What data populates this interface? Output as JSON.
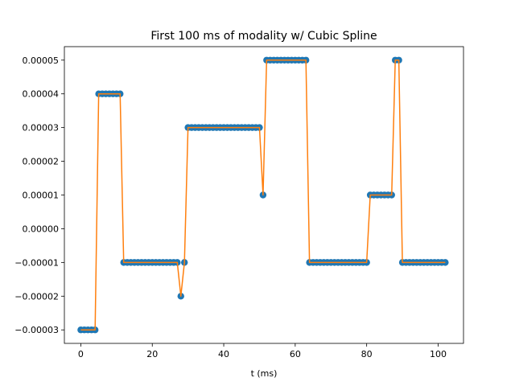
{
  "chart_data": {
    "type": "line",
    "title": "First 100 ms of modality w/ Cubic Spline",
    "xlabel": "t (ms)",
    "ylabel": "",
    "xlim": [
      -4.6,
      107.1
    ],
    "ylim": [
      -3.4e-05,
      5.4e-05
    ],
    "xticks": [
      0,
      20,
      40,
      60,
      80,
      100
    ],
    "xtick_labels": [
      "0",
      "20",
      "40",
      "60",
      "80",
      "100"
    ],
    "yticks": [
      -3e-05,
      -2e-05,
      -1e-05,
      0.0,
      1e-05,
      2e-05,
      3e-05,
      4e-05,
      5e-05
    ],
    "ytick_labels": [
      "−0.00003",
      "−0.00002",
      "−0.00001",
      "0.00000",
      "0.00001",
      "0.00002",
      "0.00003",
      "0.00004",
      "0.00005"
    ],
    "grid": false,
    "series": [
      {
        "kind": "scatter",
        "color": "#1f77b4",
        "x": [
          0,
          1,
          2,
          3,
          4,
          5,
          6,
          7,
          8,
          9,
          10,
          11,
          12,
          13,
          14,
          15,
          16,
          17,
          18,
          19,
          20,
          21,
          22,
          23,
          24,
          25,
          26,
          27,
          28,
          29,
          30,
          31,
          32,
          33,
          34,
          35,
          36,
          37,
          38,
          39,
          40,
          41,
          42,
          43,
          44,
          45,
          46,
          47,
          48,
          49,
          50,
          51,
          52,
          53,
          54,
          55,
          56,
          57,
          58,
          59,
          60,
          61,
          62,
          63,
          64,
          65,
          66,
          67,
          68,
          69,
          70,
          71,
          72,
          73,
          74,
          75,
          76,
          77,
          78,
          79,
          80,
          81,
          82,
          83,
          84,
          85,
          86,
          87,
          88,
          89,
          90,
          91,
          92,
          93,
          94,
          95,
          96,
          97,
          98,
          99,
          100,
          101,
          102
        ],
        "y": [
          -3e-05,
          -3e-05,
          -3e-05,
          -3e-05,
          -3e-05,
          4e-05,
          4e-05,
          4e-05,
          4e-05,
          4e-05,
          4e-05,
          4e-05,
          -1e-05,
          -1e-05,
          -1e-05,
          -1e-05,
          -1e-05,
          -1e-05,
          -1e-05,
          -1e-05,
          -1e-05,
          -1e-05,
          -1e-05,
          -1e-05,
          -1e-05,
          -1e-05,
          -1e-05,
          -1e-05,
          -2e-05,
          -1e-05,
          3e-05,
          3e-05,
          3e-05,
          3e-05,
          3e-05,
          3e-05,
          3e-05,
          3e-05,
          3e-05,
          3e-05,
          3e-05,
          3e-05,
          3e-05,
          3e-05,
          3e-05,
          3e-05,
          3e-05,
          3e-05,
          3e-05,
          3e-05,
          3e-05,
          1e-05,
          5e-05,
          5e-05,
          5e-05,
          5e-05,
          5e-05,
          5e-05,
          5e-05,
          5e-05,
          5e-05,
          5e-05,
          5e-05,
          5e-05,
          -1e-05,
          -1e-05,
          -1e-05,
          -1e-05,
          -1e-05,
          -1e-05,
          -1e-05,
          -1e-05,
          -1e-05,
          -1e-05,
          -1e-05,
          -1e-05,
          -1e-05,
          -1e-05,
          -1e-05,
          -1e-05,
          -1e-05,
          1e-05,
          1e-05,
          1e-05,
          1e-05,
          1e-05,
          1e-05,
          1e-05,
          5e-05,
          5e-05,
          -1e-05,
          -1e-05,
          -1e-05,
          -1e-05,
          -1e-05,
          -1e-05,
          -1e-05,
          -1e-05,
          -1e-05,
          -1e-05,
          -1e-05,
          -1e-05,
          -1e-05
        ]
      },
      {
        "kind": "line",
        "color": "#ff7f0e",
        "x": [
          0,
          1,
          2,
          3,
          4,
          5,
          6,
          7,
          8,
          9,
          10,
          11,
          12,
          13,
          14,
          15,
          16,
          17,
          18,
          19,
          20,
          21,
          22,
          23,
          24,
          25,
          26,
          27,
          28,
          29,
          30,
          31,
          32,
          33,
          34,
          35,
          36,
          37,
          38,
          39,
          40,
          41,
          42,
          43,
          44,
          45,
          46,
          47,
          48,
          49,
          50,
          51,
          52,
          53,
          54,
          55,
          56,
          57,
          58,
          59,
          60,
          61,
          62,
          63,
          64,
          65,
          66,
          67,
          68,
          69,
          70,
          71,
          72,
          73,
          74,
          75,
          76,
          77,
          78,
          79,
          80,
          81,
          82,
          83,
          84,
          85,
          86,
          87,
          88,
          89,
          90,
          91,
          92,
          93,
          94,
          95,
          96,
          97,
          98,
          99,
          100,
          101,
          102
        ],
        "y": [
          -3e-05,
          -3e-05,
          -3e-05,
          -3e-05,
          -3e-05,
          4e-05,
          4e-05,
          4e-05,
          4e-05,
          4e-05,
          4e-05,
          4e-05,
          -1e-05,
          -1e-05,
          -1e-05,
          -1e-05,
          -1e-05,
          -1e-05,
          -1e-05,
          -1e-05,
          -1e-05,
          -1e-05,
          -1e-05,
          -1e-05,
          -1e-05,
          -1e-05,
          -1e-05,
          -1e-05,
          -2e-05,
          -1e-05,
          3e-05,
          3e-05,
          3e-05,
          3e-05,
          3e-05,
          3e-05,
          3e-05,
          3e-05,
          3e-05,
          3e-05,
          3e-05,
          3e-05,
          3e-05,
          3e-05,
          3e-05,
          3e-05,
          3e-05,
          3e-05,
          3e-05,
          3e-05,
          3e-05,
          1e-05,
          5e-05,
          5e-05,
          5e-05,
          5e-05,
          5e-05,
          5e-05,
          5e-05,
          5e-05,
          5e-05,
          5e-05,
          5e-05,
          5e-05,
          -1e-05,
          -1e-05,
          -1e-05,
          -1e-05,
          -1e-05,
          -1e-05,
          -1e-05,
          -1e-05,
          -1e-05,
          -1e-05,
          -1e-05,
          -1e-05,
          -1e-05,
          -1e-05,
          -1e-05,
          -1e-05,
          -1e-05,
          1e-05,
          1e-05,
          1e-05,
          1e-05,
          1e-05,
          1e-05,
          1e-05,
          5e-05,
          5e-05,
          -1e-05,
          -1e-05,
          -1e-05,
          -1e-05,
          -1e-05,
          -1e-05,
          -1e-05,
          -1e-05,
          -1e-05,
          -1e-05,
          -1e-05,
          -1e-05,
          -1e-05
        ]
      }
    ]
  }
}
